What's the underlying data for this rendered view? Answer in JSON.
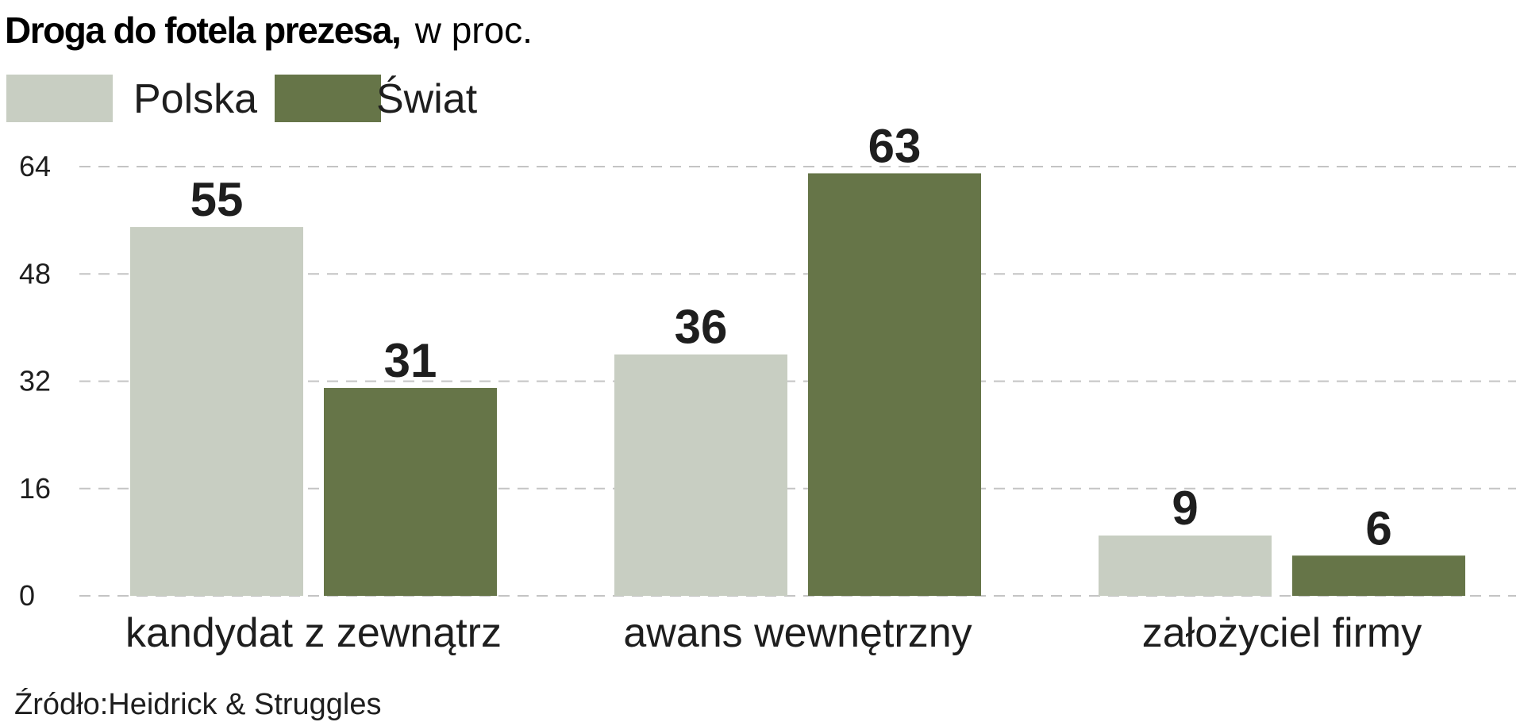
{
  "chart_data": {
    "type": "bar",
    "title": "Droga do fotela prezesa,",
    "subtitle": "w proc.",
    "categories": [
      "kandydat z zewnątrz",
      "awans wewnętrzny",
      "założyciel firmy"
    ],
    "series": [
      {
        "name": "Polska",
        "color": "#c8cec2",
        "values": [
          55,
          36,
          9
        ]
      },
      {
        "name": "Świat",
        "color": "#667548",
        "values": [
          31,
          63,
          6
        ]
      }
    ],
    "y_ticks": [
      "0",
      "16",
      "32",
      "48",
      "64"
    ],
    "ylim": [
      0,
      64
    ],
    "grid": true,
    "grid_style": "dashed",
    "legend_position": "top-left",
    "source": "Źródło:Heidrick & Struggles"
  }
}
